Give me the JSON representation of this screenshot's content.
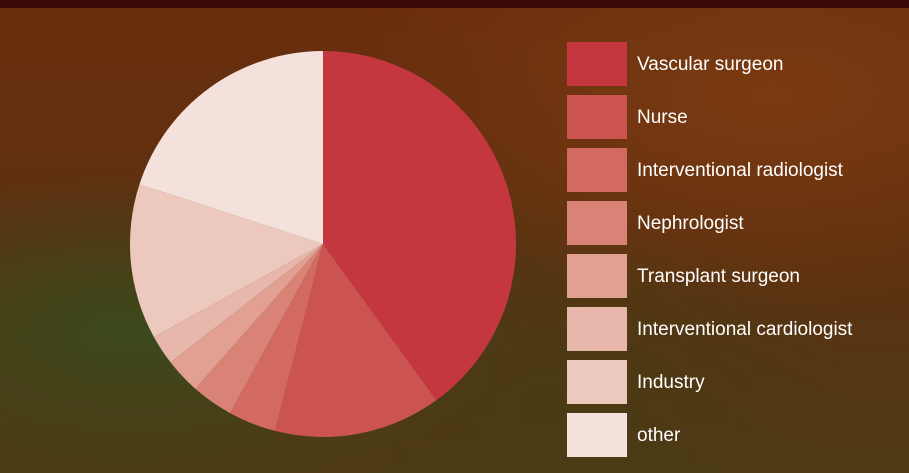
{
  "chart_data": {
    "type": "pie",
    "categories": [
      "Vascular surgeon",
      "Nurse",
      "Interventional radiologist",
      "Nephrologist",
      "Transplant surgeon",
      "Interventional cardiologist",
      "Industry",
      "other"
    ],
    "values": [
      40,
      14,
      4,
      3.5,
      3,
      2.5,
      13,
      20
    ],
    "colors": [
      "#c4373e",
      "#cb5450",
      "#d26a61",
      "#d98377",
      "#e2a092",
      "#e8b7ab",
      "#edc8bd",
      "#f5e1dc"
    ],
    "legend": "right"
  }
}
